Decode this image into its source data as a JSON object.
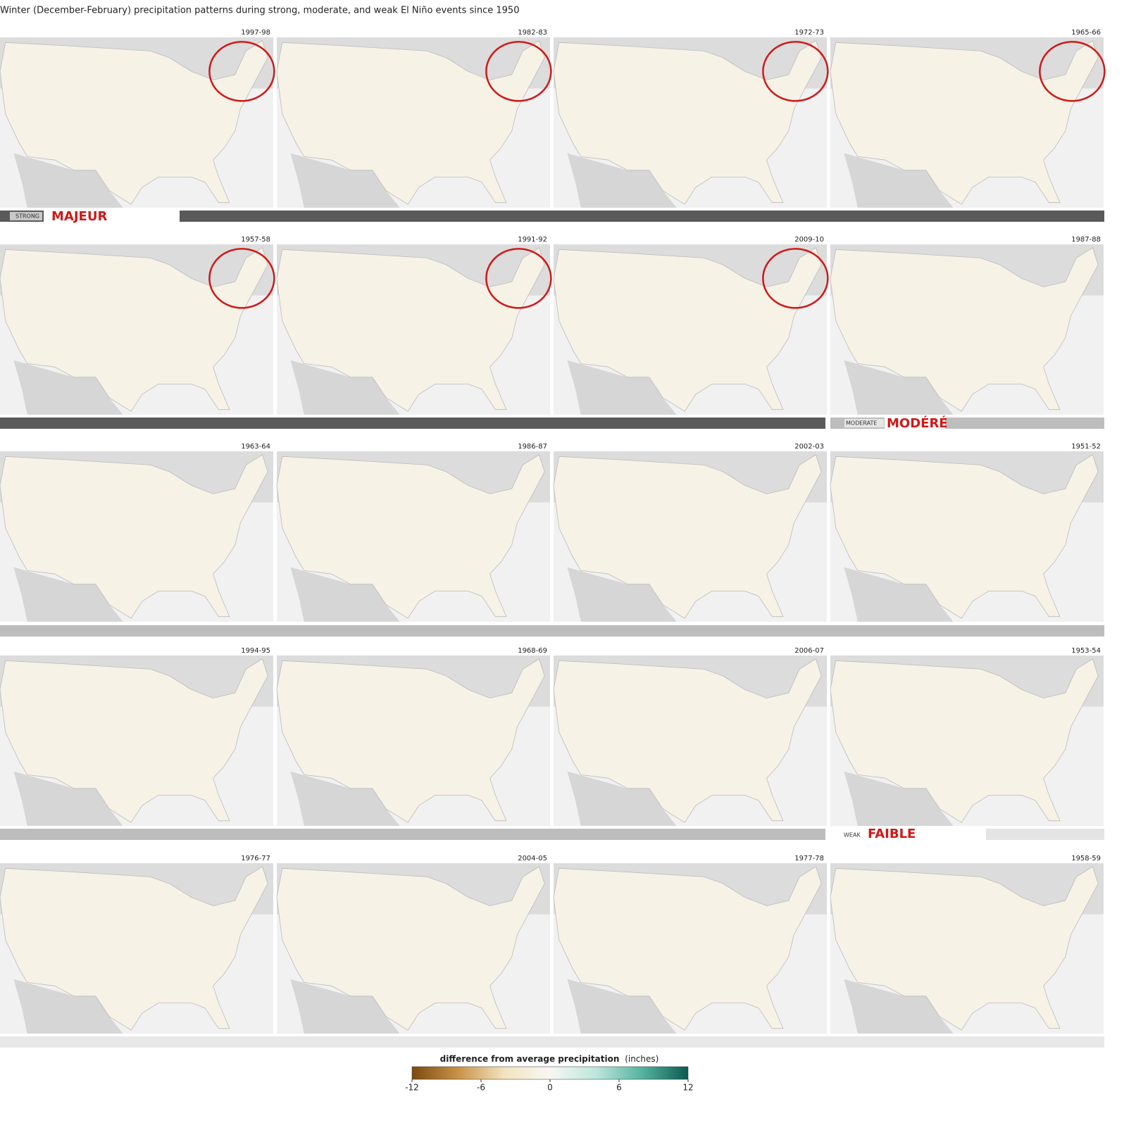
{
  "title": "Winter (December-February) precipitation patterns during strong, moderate, and weak El Niño events since 1950",
  "panels": [
    {
      "label": "1997-98",
      "circled": true
    },
    {
      "label": "1982-83",
      "circled": true
    },
    {
      "label": "1972-73",
      "circled": true
    },
    {
      "label": "1965-66",
      "circled": true
    },
    {
      "label": "1957-58",
      "circled": true
    },
    {
      "label": "1991-92",
      "circled": true
    },
    {
      "label": "2009-10",
      "circled": true
    },
    {
      "label": "1987-88",
      "circled": false
    },
    {
      "label": "1963-64",
      "circled": false
    },
    {
      "label": "1986-87",
      "circled": false
    },
    {
      "label": "2002-03",
      "circled": false
    },
    {
      "label": "1951-52",
      "circled": false
    },
    {
      "label": "1994-95",
      "circled": false
    },
    {
      "label": "1968-69",
      "circled": false
    },
    {
      "label": "2006-07",
      "circled": false
    },
    {
      "label": "1953-54",
      "circled": false
    },
    {
      "label": "1976-77",
      "circled": false
    },
    {
      "label": "2004-05",
      "circled": false
    },
    {
      "label": "1977-78",
      "circled": false
    },
    {
      "label": "1958-59",
      "circled": false
    }
  ],
  "strength": [
    {
      "label": "STRONG",
      "translation": "MAJEUR"
    },
    {
      "label": "MODERATE",
      "translation": "MODÉRÉ"
    },
    {
      "label": "WEAK",
      "translation": "FAIBLE"
    }
  ],
  "legend": {
    "title": "difference from average precipitation",
    "unit": "(inches)",
    "range": [
      -12,
      12
    ],
    "ticks": [
      -12,
      -6,
      0,
      6,
      12
    ],
    "colors": [
      "#7a4a0f",
      "#c99248",
      "#f3e3bf",
      "#f7f7f2",
      "#bde6dc",
      "#55b3a0",
      "#0b5a4f"
    ]
  }
}
